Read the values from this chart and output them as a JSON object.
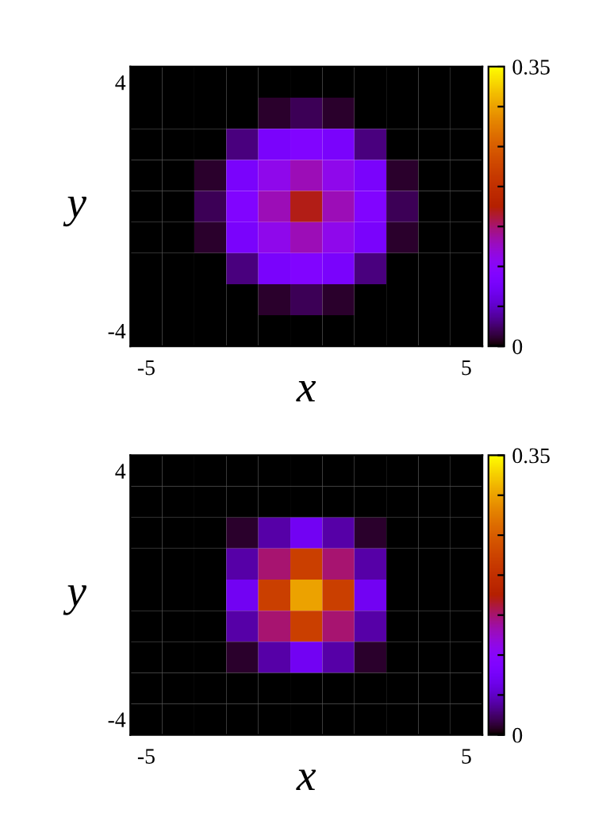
{
  "chart_data": [
    {
      "type": "heatmap",
      "xlabel": "x",
      "ylabel": "y",
      "categories": [
        "-5",
        null,
        null,
        null,
        null,
        null,
        null,
        null,
        null,
        null,
        "5"
      ],
      "y_categories": [
        "4",
        null,
        null,
        null,
        null,
        null,
        null,
        null,
        "-4"
      ],
      "cells": [
        [
          0,
          0,
          0,
          0,
          0,
          0,
          0,
          0,
          0,
          0,
          0
        ],
        [
          0,
          0,
          0,
          0,
          0.01,
          0.02,
          0.01,
          0,
          0,
          0,
          0
        ],
        [
          0,
          0,
          0,
          0.03,
          0.08,
          0.09,
          0.08,
          0.03,
          0,
          0,
          0
        ],
        [
          0,
          0,
          0.01,
          0.08,
          0.11,
          0.13,
          0.11,
          0.08,
          0.01,
          0,
          0
        ],
        [
          0,
          0,
          0.02,
          0.09,
          0.13,
          0.17,
          0.13,
          0.09,
          0.02,
          0,
          0
        ],
        [
          0,
          0,
          0.01,
          0.08,
          0.11,
          0.13,
          0.11,
          0.08,
          0.01,
          0,
          0
        ],
        [
          0,
          0,
          0,
          0.03,
          0.08,
          0.09,
          0.08,
          0.03,
          0,
          0,
          0
        ],
        [
          0,
          0,
          0,
          0,
          0.01,
          0.02,
          0.01,
          0,
          0,
          0,
          0
        ],
        [
          0,
          0,
          0,
          0,
          0,
          0,
          0,
          0,
          0,
          0,
          0
        ]
      ],
      "clim": [
        0,
        0.35
      ],
      "cticks": [
        0,
        {
          "value": 0.05,
          "label": null
        },
        {
          "value": 0.1,
          "label": null
        },
        {
          "value": 0.15,
          "label": null
        },
        {
          "value": 0.2,
          "label": null
        },
        {
          "value": 0.25,
          "label": null
        },
        {
          "value": 0.3,
          "label": null
        },
        0.35
      ]
    },
    {
      "type": "heatmap",
      "xlabel": "x",
      "ylabel": "y",
      "categories": [
        "-5",
        null,
        null,
        null,
        null,
        null,
        null,
        null,
        null,
        null,
        "5"
      ],
      "y_categories": [
        "4",
        null,
        null,
        null,
        null,
        null,
        null,
        null,
        "-4"
      ],
      "cells": [
        [
          0,
          0,
          0,
          0,
          0,
          0,
          0,
          0,
          0,
          0,
          0
        ],
        [
          0,
          0,
          0,
          0,
          0,
          0,
          0,
          0,
          0,
          0,
          0
        ],
        [
          0,
          0,
          0,
          0.01,
          0.04,
          0.07,
          0.04,
          0.01,
          0,
          0,
          0
        ],
        [
          0,
          0,
          0,
          0.04,
          0.15,
          0.22,
          0.15,
          0.04,
          0,
          0,
          0
        ],
        [
          0,
          0,
          0,
          0.07,
          0.22,
          0.3,
          0.22,
          0.07,
          0,
          0,
          0
        ],
        [
          0,
          0,
          0,
          0.04,
          0.15,
          0.22,
          0.15,
          0.04,
          0,
          0,
          0
        ],
        [
          0,
          0,
          0,
          0.01,
          0.04,
          0.07,
          0.04,
          0.01,
          0,
          0,
          0
        ],
        [
          0,
          0,
          0,
          0,
          0,
          0,
          0,
          0,
          0,
          0,
          0
        ],
        [
          0,
          0,
          0,
          0,
          0,
          0,
          0,
          0,
          0,
          0,
          0
        ]
      ],
      "clim": [
        0,
        0.35
      ],
      "cticks": [
        0,
        {
          "value": 0.05,
          "label": null
        },
        {
          "value": 0.1,
          "label": null
        },
        {
          "value": 0.15,
          "label": null
        },
        {
          "value": 0.2,
          "label": null
        },
        {
          "value": 0.25,
          "label": null
        },
        {
          "value": 0.3,
          "label": null
        },
        0.35
      ]
    }
  ]
}
